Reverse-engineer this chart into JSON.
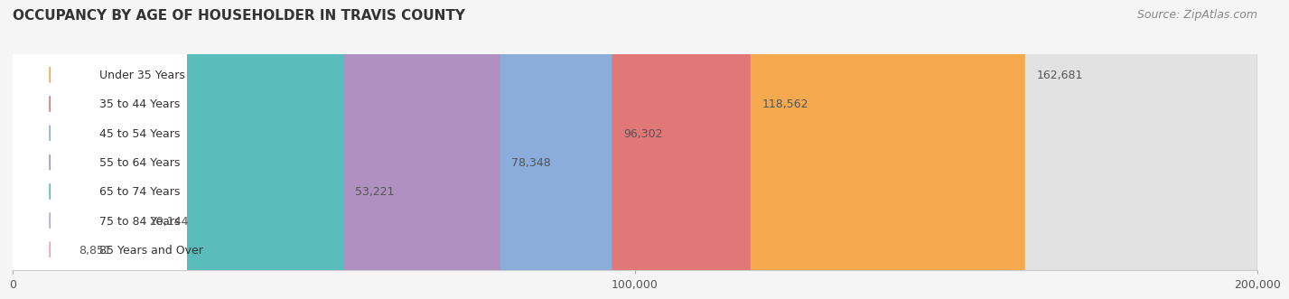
{
  "title": "OCCUPANCY BY AGE OF HOUSEHOLDER IN TRAVIS COUNTY",
  "source": "Source: ZipAtlas.com",
  "categories": [
    "Under 35 Years",
    "35 to 44 Years",
    "45 to 54 Years",
    "55 to 64 Years",
    "65 to 74 Years",
    "75 to 84 Years",
    "85 Years and Over"
  ],
  "values": [
    162681,
    118562,
    96302,
    78348,
    53221,
    20144,
    8851
  ],
  "bar_colors": [
    "#f5a94e",
    "#e07878",
    "#8aadda",
    "#b090c0",
    "#5bbcbc",
    "#aaaae0",
    "#f0a0be"
  ],
  "xlim": [
    0,
    200000
  ],
  "xticks": [
    0,
    100000,
    200000
  ],
  "xtick_labels": [
    "0",
    "100,000",
    "200,000"
  ],
  "title_fontsize": 11,
  "source_fontsize": 9,
  "label_fontsize": 9,
  "value_fontsize": 9,
  "background_color": "#f5f5f5",
  "bar_bg_color": "#e2e2e2"
}
